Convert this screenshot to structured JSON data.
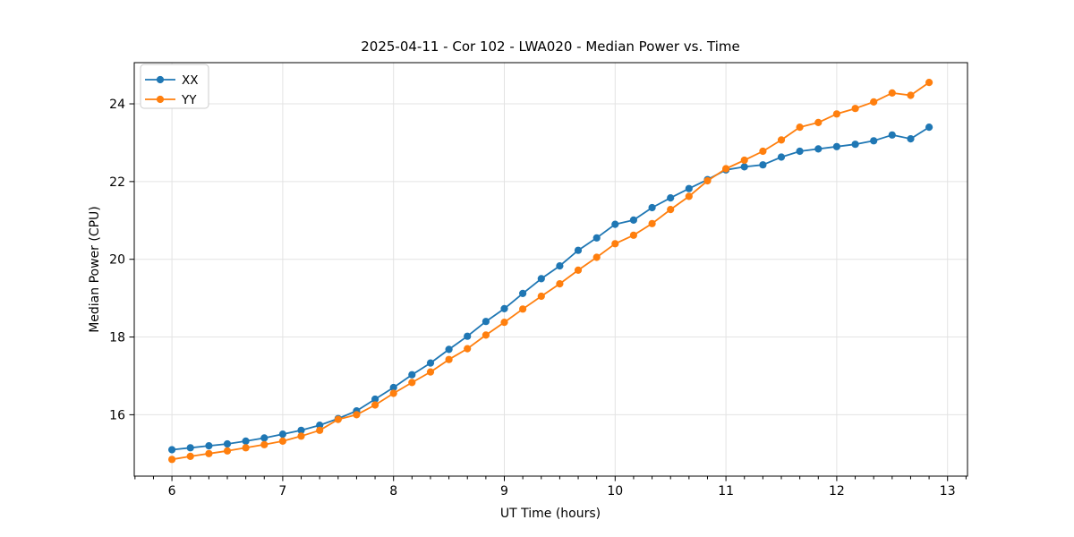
{
  "chart_data": {
    "type": "line",
    "title": "2025-04-11 - Cor 102 - LWA020 - Median Power vs. Time",
    "xlabel": "UT Time (hours)",
    "ylabel": "Median Power (CPU)",
    "xlim": [
      5.66,
      13.18
    ],
    "ylim": [
      14.42,
      25.06
    ],
    "x_ticks": [
      6,
      7,
      8,
      9,
      10,
      11,
      12,
      13
    ],
    "y_ticks": [
      16,
      18,
      20,
      22,
      24
    ],
    "x_minor_step": 0.166667,
    "grid": true,
    "grid_color": "#e3e3e3",
    "legend_position": "upper-left",
    "background": "#ffffff",
    "x": [
      6.0,
      6.1667,
      6.3333,
      6.5,
      6.6667,
      6.8333,
      7.0,
      7.1667,
      7.3333,
      7.5,
      7.6667,
      7.8333,
      8.0,
      8.1667,
      8.3333,
      8.5,
      8.6667,
      8.8333,
      9.0,
      9.1667,
      9.3333,
      9.5,
      9.6667,
      9.8333,
      10.0,
      10.1667,
      10.3333,
      10.5,
      10.6667,
      10.8333,
      11.0,
      11.1667,
      11.3333,
      11.5,
      11.6667,
      11.8333,
      12.0,
      12.1667,
      12.3333,
      12.5,
      12.6667,
      12.8333
    ],
    "series": [
      {
        "name": "XX",
        "color": "#1f77b4",
        "values": [
          15.1,
          15.15,
          15.2,
          15.25,
          15.32,
          15.4,
          15.5,
          15.6,
          15.73,
          15.9,
          16.1,
          16.4,
          16.7,
          17.03,
          17.33,
          17.68,
          18.02,
          18.4,
          18.73,
          19.12,
          19.5,
          19.83,
          20.23,
          20.55,
          20.9,
          21.01,
          21.33,
          21.58,
          21.82,
          22.05,
          22.3,
          22.38,
          22.43,
          22.63,
          22.78,
          22.84,
          22.9,
          22.96,
          23.05,
          23.2,
          23.1,
          23.4
        ]
      },
      {
        "name": "YY",
        "color": "#ff7f0e",
        "values": [
          14.85,
          14.93,
          15.0,
          15.07,
          15.15,
          15.23,
          15.32,
          15.45,
          15.6,
          15.88,
          16.0,
          16.25,
          16.55,
          16.83,
          17.1,
          17.42,
          17.7,
          18.05,
          18.38,
          18.72,
          19.05,
          19.37,
          19.72,
          20.05,
          20.4,
          20.62,
          20.92,
          21.28,
          21.62,
          22.02,
          22.33,
          22.55,
          22.78,
          23.07,
          23.4,
          23.52,
          23.74,
          23.88,
          24.05,
          24.28,
          24.22,
          24.55
        ]
      }
    ]
  }
}
